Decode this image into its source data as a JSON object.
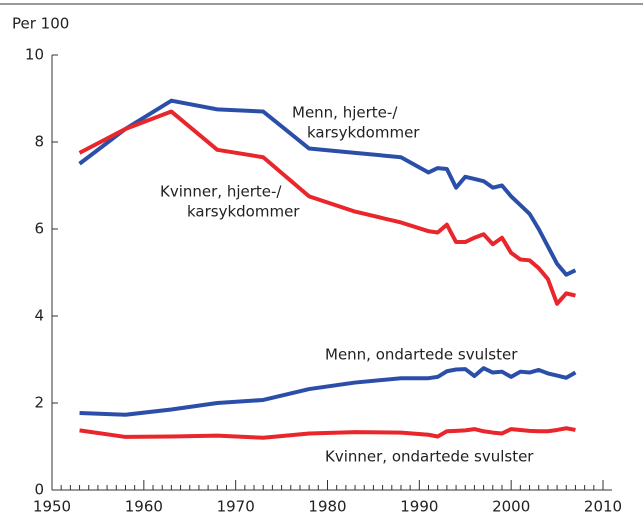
{
  "chart_data": {
    "type": "line",
    "ylabel": "Per 100",
    "x": [
      1953,
      1958,
      1963,
      1968,
      1973,
      1978,
      1983,
      1988,
      1991,
      1992,
      1993,
      1994,
      1995,
      1996,
      1997,
      1998,
      1999,
      2000,
      2001,
      2002,
      2003,
      2004,
      2005,
      2006,
      2007
    ],
    "series": [
      {
        "color": "#2b4fa8",
        "values": [
          7.5,
          8.3,
          8.95,
          8.75,
          8.7,
          7.85,
          7.75,
          7.65,
          7.3,
          7.4,
          7.38,
          6.95,
          7.2,
          7.15,
          7.1,
          6.95,
          7.0,
          6.75,
          6.55,
          6.35,
          6.0,
          5.6,
          5.2,
          4.95,
          5.05
        ]
      },
      {
        "color": "#e8262b",
        "values": [
          7.75,
          8.3,
          8.7,
          7.82,
          7.65,
          6.75,
          6.4,
          6.15,
          5.95,
          5.92,
          6.1,
          5.7,
          5.7,
          5.8,
          5.88,
          5.65,
          5.8,
          5.45,
          5.3,
          5.28,
          5.1,
          4.85,
          4.28,
          4.52,
          4.47
        ]
      },
      {
        "color": "#2b4fa8",
        "values": [
          1.77,
          1.73,
          1.85,
          2.0,
          2.07,
          2.32,
          2.47,
          2.57,
          2.57,
          2.6,
          2.73,
          2.77,
          2.78,
          2.62,
          2.8,
          2.7,
          2.72,
          2.6,
          2.72,
          2.7,
          2.76,
          2.68,
          2.63,
          2.58,
          2.7
        ]
      },
      {
        "color": "#e8262b",
        "values": [
          1.37,
          1.22,
          1.23,
          1.25,
          1.2,
          1.3,
          1.33,
          1.32,
          1.27,
          1.23,
          1.35,
          1.36,
          1.37,
          1.4,
          1.35,
          1.32,
          1.3,
          1.4,
          1.38,
          1.36,
          1.35,
          1.35,
          1.38,
          1.42,
          1.38
        ]
      }
    ],
    "annotations": [
      {
        "lines": [
          "Menn, hjerte-/",
          "karsykdommer"
        ]
      },
      {
        "lines": [
          "Kvinner, hjerte-/",
          "karsykdommer"
        ]
      },
      {
        "lines": [
          "Menn, ondartede svulster"
        ]
      },
      {
        "lines": [
          "Kvinner, ondartede svulster"
        ]
      }
    ],
    "xlim": [
      1950,
      2010
    ],
    "xticks": [
      1950,
      1960,
      1970,
      1980,
      1990,
      2000,
      2010
    ],
    "xminorticks": [
      1951,
      1952,
      1953,
      1954,
      1955,
      1956,
      1957,
      1958,
      1959,
      1961,
      1962,
      1963,
      1964,
      1965,
      1966,
      1967,
      1968,
      1969,
      1971,
      1972,
      1973,
      1974,
      1975,
      1976,
      1977,
      1978,
      1979,
      1981,
      1982,
      1983,
      1984,
      1985,
      1986,
      1987,
      1988,
      1989,
      1991,
      1992,
      1993,
      1994,
      1995,
      1996,
      1997,
      1998,
      1999,
      2001,
      2002,
      2003,
      2004,
      2005,
      2006,
      2007,
      2008,
      2009
    ],
    "ylim": [
      0,
      10
    ],
    "yticks": [
      0,
      2,
      4,
      6,
      8,
      10
    ]
  }
}
